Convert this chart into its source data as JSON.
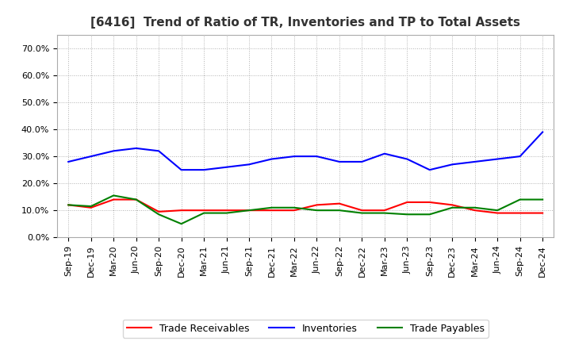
{
  "title": "[6416]  Trend of Ratio of TR, Inventories and TP to Total Assets",
  "x_labels": [
    "Sep-19",
    "Dec-19",
    "Mar-20",
    "Jun-20",
    "Sep-20",
    "Dec-20",
    "Mar-21",
    "Jun-21",
    "Sep-21",
    "Dec-21",
    "Mar-22",
    "Jun-22",
    "Sep-22",
    "Dec-22",
    "Mar-23",
    "Jun-23",
    "Sep-23",
    "Dec-23",
    "Mar-24",
    "Jun-24",
    "Sep-24",
    "Dec-24"
  ],
  "trade_receivables": [
    0.12,
    0.11,
    0.14,
    0.14,
    0.095,
    0.1,
    0.1,
    0.1,
    0.1,
    0.1,
    0.1,
    0.12,
    0.125,
    0.1,
    0.1,
    0.13,
    0.13,
    0.12,
    0.1,
    0.09,
    0.09,
    0.09
  ],
  "inventories": [
    0.28,
    0.3,
    0.32,
    0.33,
    0.32,
    0.25,
    0.25,
    0.26,
    0.27,
    0.29,
    0.3,
    0.3,
    0.28,
    0.28,
    0.31,
    0.29,
    0.25,
    0.27,
    0.28,
    0.29,
    0.3,
    0.39
  ],
  "trade_payables": [
    0.12,
    0.115,
    0.155,
    0.14,
    0.085,
    0.05,
    0.09,
    0.09,
    0.1,
    0.11,
    0.11,
    0.1,
    0.1,
    0.09,
    0.09,
    0.085,
    0.085,
    0.11,
    0.11,
    0.1,
    0.14,
    0.14
  ],
  "tr_color": "#ff0000",
  "inv_color": "#0000ff",
  "tp_color": "#008000",
  "ylim": [
    0.0,
    0.75
  ],
  "yticks": [
    0.0,
    0.1,
    0.2,
    0.3,
    0.4,
    0.5,
    0.6,
    0.7
  ],
  "background_color": "#ffffff",
  "grid_color": "#b0b0b0",
  "title_fontsize": 11,
  "title_color": "#333333",
  "tick_fontsize": 8,
  "legend_fontsize": 9
}
